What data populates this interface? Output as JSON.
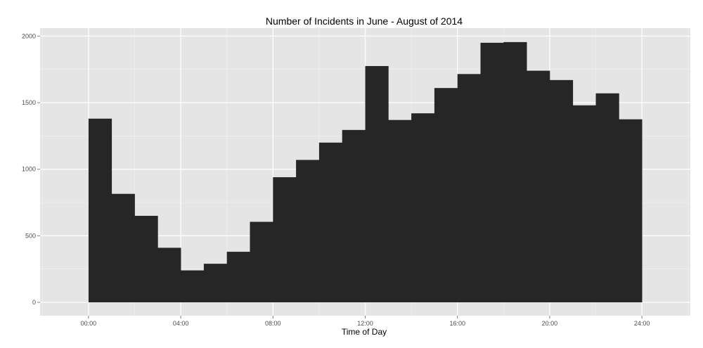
{
  "chart_data": {
    "type": "bar",
    "title": "Number of Incidents in June - August of 2014",
    "xlabel": "Time of Day",
    "ylabel": "",
    "x_ticks": [
      "00:00",
      "04:00",
      "08:00",
      "12:00",
      "16:00",
      "20:00",
      "24:00"
    ],
    "y_ticks": [
      "0",
      "500",
      "1000",
      "1500",
      "2000"
    ],
    "xlim_hours": [
      -2.1,
      26.1
    ],
    "ylim": [
      -100,
      2060
    ],
    "bin_width_hours": 1,
    "bin_starts_hours": [
      0,
      1,
      2,
      3,
      4,
      5,
      6,
      7,
      8,
      9,
      10,
      11,
      12,
      13,
      14,
      15,
      16,
      17,
      18,
      19,
      20,
      21,
      22,
      23
    ],
    "values": [
      1380,
      815,
      650,
      410,
      240,
      290,
      380,
      605,
      940,
      1070,
      1200,
      1295,
      1775,
      1370,
      1420,
      1610,
      1715,
      1950,
      1955,
      1740,
      1670,
      1480,
      1570,
      1375
    ],
    "grid": true,
    "colors": {
      "bar": "#262626",
      "panel": "#e5e5e5",
      "grid_major": "#ffffff",
      "grid_minor": "#f2f2f2"
    }
  }
}
